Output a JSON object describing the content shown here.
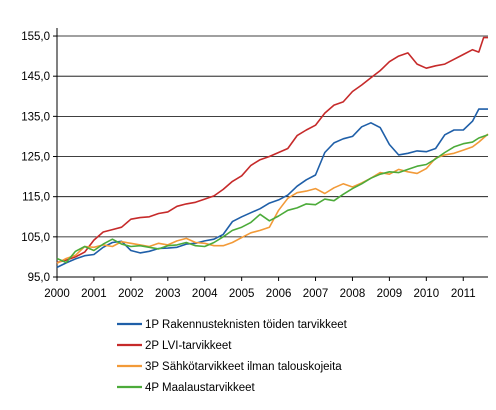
{
  "chart_data": {
    "type": "line",
    "title": "",
    "xlabel": "",
    "ylabel": "",
    "xlim": [
      2000.0,
      2011.67
    ],
    "ylim": [
      95,
      157
    ],
    "y_ticks": [
      95,
      105,
      115,
      125,
      135,
      145,
      155
    ],
    "y_tick_labels": [
      "95,0",
      "105,0",
      "115,0",
      "125,0",
      "135,0",
      "145,0",
      "155,0"
    ],
    "x_ticks": [
      2000,
      2001,
      2002,
      2003,
      2004,
      2005,
      2006,
      2007,
      2008,
      2009,
      2010,
      2011
    ],
    "x_tick_labels": [
      "2000",
      "2001",
      "2002",
      "2003",
      "2004",
      "2005",
      "2006",
      "2007",
      "2008",
      "2009",
      "2010",
      "2011"
    ],
    "grid": "horizontal",
    "legend_position": "bottom",
    "series": [
      {
        "name": "1P Rakennusteknisten  töiden tarvikkeet",
        "color": "#1f5fa8",
        "points": [
          [
            2000.0,
            97.4
          ],
          [
            2000.25,
            98.5
          ],
          [
            2000.5,
            99.5
          ],
          [
            2000.75,
            100.3
          ],
          [
            2001.0,
            100.6
          ],
          [
            2001.25,
            102.4
          ],
          [
            2001.5,
            103.6
          ],
          [
            2001.75,
            103.9
          ],
          [
            2002.0,
            101.6
          ],
          [
            2002.25,
            101.0
          ],
          [
            2002.5,
            101.4
          ],
          [
            2002.75,
            102.1
          ],
          [
            2003.0,
            102.2
          ],
          [
            2003.25,
            102.4
          ],
          [
            2003.5,
            103.2
          ],
          [
            2003.75,
            103.4
          ],
          [
            2004.0,
            104.0
          ],
          [
            2004.25,
            104.4
          ],
          [
            2004.5,
            105.6
          ],
          [
            2004.75,
            108.8
          ],
          [
            2005.0,
            110.0
          ],
          [
            2005.25,
            111.0
          ],
          [
            2005.5,
            112.0
          ],
          [
            2005.75,
            113.4
          ],
          [
            2006.0,
            114.2
          ],
          [
            2006.25,
            115.4
          ],
          [
            2006.5,
            117.6
          ],
          [
            2006.75,
            119.2
          ],
          [
            2007.0,
            120.4
          ],
          [
            2007.25,
            126.0
          ],
          [
            2007.5,
            128.4
          ],
          [
            2007.75,
            129.4
          ],
          [
            2008.0,
            130.0
          ],
          [
            2008.25,
            132.4
          ],
          [
            2008.5,
            133.4
          ],
          [
            2008.75,
            132.2
          ],
          [
            2009.0,
            128.0
          ],
          [
            2009.25,
            125.4
          ],
          [
            2009.5,
            125.8
          ],
          [
            2009.75,
            126.4
          ],
          [
            2010.0,
            126.2
          ],
          [
            2010.25,
            127.0
          ],
          [
            2010.5,
            130.4
          ],
          [
            2010.75,
            131.6
          ],
          [
            2011.0,
            131.6
          ],
          [
            2011.25,
            133.8
          ],
          [
            2011.42,
            136.8
          ],
          [
            2011.67,
            136.8
          ]
        ]
      },
      {
        "name": "2P LVI-tarvikkeet",
        "color": "#c62a2a",
        "points": [
          [
            2000.0,
            98.6
          ],
          [
            2000.25,
            99.2
          ],
          [
            2000.5,
            100.0
          ],
          [
            2000.75,
            101.2
          ],
          [
            2001.0,
            104.2
          ],
          [
            2001.25,
            106.2
          ],
          [
            2001.5,
            106.8
          ],
          [
            2001.75,
            107.4
          ],
          [
            2002.0,
            109.4
          ],
          [
            2002.25,
            109.8
          ],
          [
            2002.5,
            110.0
          ],
          [
            2002.75,
            110.8
          ],
          [
            2003.0,
            111.2
          ],
          [
            2003.25,
            112.6
          ],
          [
            2003.5,
            113.2
          ],
          [
            2003.75,
            113.6
          ],
          [
            2004.0,
            114.4
          ],
          [
            2004.25,
            115.2
          ],
          [
            2004.5,
            116.8
          ],
          [
            2004.75,
            118.8
          ],
          [
            2005.0,
            120.2
          ],
          [
            2005.25,
            122.8
          ],
          [
            2005.5,
            124.2
          ],
          [
            2005.75,
            125.0
          ],
          [
            2006.0,
            126.0
          ],
          [
            2006.25,
            127.0
          ],
          [
            2006.5,
            130.2
          ],
          [
            2006.75,
            131.6
          ],
          [
            2007.0,
            132.8
          ],
          [
            2007.25,
            135.8
          ],
          [
            2007.5,
            137.8
          ],
          [
            2007.75,
            138.6
          ],
          [
            2008.0,
            141.2
          ],
          [
            2008.25,
            142.8
          ],
          [
            2008.5,
            144.6
          ],
          [
            2008.75,
            146.4
          ],
          [
            2009.0,
            148.6
          ],
          [
            2009.25,
            150.0
          ],
          [
            2009.5,
            150.8
          ],
          [
            2009.75,
            148.0
          ],
          [
            2010.0,
            147.0
          ],
          [
            2010.25,
            147.6
          ],
          [
            2010.5,
            148.0
          ],
          [
            2010.75,
            149.2
          ],
          [
            2011.0,
            150.4
          ],
          [
            2011.25,
            151.6
          ],
          [
            2011.42,
            151.0
          ],
          [
            2011.55,
            154.6
          ],
          [
            2011.67,
            154.6
          ]
        ]
      },
      {
        "name": "3P Sähkötarvikkeet  ilman talouskojeita",
        "color": "#f29a38",
        "points": [
          [
            2000.0,
            98.4
          ],
          [
            2000.25,
            99.6
          ],
          [
            2000.5,
            100.4
          ],
          [
            2000.75,
            102.6
          ],
          [
            2001.0,
            102.4
          ],
          [
            2001.25,
            103.0
          ],
          [
            2001.5,
            102.6
          ],
          [
            2001.75,
            103.8
          ],
          [
            2002.0,
            103.4
          ],
          [
            2002.25,
            103.0
          ],
          [
            2002.5,
            102.6
          ],
          [
            2002.75,
            103.4
          ],
          [
            2003.0,
            103.0
          ],
          [
            2003.25,
            104.0
          ],
          [
            2003.5,
            104.6
          ],
          [
            2003.75,
            103.6
          ],
          [
            2004.0,
            103.4
          ],
          [
            2004.25,
            102.8
          ],
          [
            2004.5,
            102.8
          ],
          [
            2004.75,
            103.6
          ],
          [
            2005.0,
            104.8
          ],
          [
            2005.25,
            106.0
          ],
          [
            2005.5,
            106.6
          ],
          [
            2005.75,
            107.4
          ],
          [
            2006.0,
            111.6
          ],
          [
            2006.25,
            114.6
          ],
          [
            2006.5,
            116.0
          ],
          [
            2006.75,
            116.4
          ],
          [
            2007.0,
            117.0
          ],
          [
            2007.25,
            115.8
          ],
          [
            2007.5,
            117.2
          ],
          [
            2007.75,
            118.2
          ],
          [
            2008.0,
            117.4
          ],
          [
            2008.25,
            118.4
          ],
          [
            2008.5,
            119.6
          ],
          [
            2008.75,
            121.0
          ],
          [
            2009.0,
            120.6
          ],
          [
            2009.25,
            121.8
          ],
          [
            2009.5,
            121.2
          ],
          [
            2009.75,
            120.8
          ],
          [
            2010.0,
            122.0
          ],
          [
            2010.25,
            124.6
          ],
          [
            2010.5,
            125.4
          ],
          [
            2010.75,
            125.8
          ],
          [
            2011.0,
            126.6
          ],
          [
            2011.25,
            127.4
          ],
          [
            2011.42,
            128.6
          ],
          [
            2011.67,
            130.6
          ]
        ]
      },
      {
        "name": "4P Maalaustarvikkeet",
        "color": "#4cab3a",
        "points": [
          [
            2000.0,
            99.6
          ],
          [
            2000.25,
            98.6
          ],
          [
            2000.5,
            101.4
          ],
          [
            2000.75,
            102.6
          ],
          [
            2001.0,
            101.6
          ],
          [
            2001.25,
            103.2
          ],
          [
            2001.5,
            104.4
          ],
          [
            2001.75,
            103.2
          ],
          [
            2002.0,
            102.6
          ],
          [
            2002.25,
            102.8
          ],
          [
            2002.5,
            102.4
          ],
          [
            2002.75,
            102.0
          ],
          [
            2003.0,
            102.8
          ],
          [
            2003.25,
            103.0
          ],
          [
            2003.5,
            103.6
          ],
          [
            2003.75,
            102.8
          ],
          [
            2004.0,
            102.6
          ],
          [
            2004.25,
            103.6
          ],
          [
            2004.5,
            105.0
          ],
          [
            2004.75,
            106.6
          ],
          [
            2005.0,
            107.4
          ],
          [
            2005.25,
            108.6
          ],
          [
            2005.5,
            110.6
          ],
          [
            2005.75,
            109.0
          ],
          [
            2006.0,
            110.2
          ],
          [
            2006.25,
            111.6
          ],
          [
            2006.5,
            112.2
          ],
          [
            2006.75,
            113.2
          ],
          [
            2007.0,
            113.0
          ],
          [
            2007.25,
            114.4
          ],
          [
            2007.5,
            114.0
          ],
          [
            2007.75,
            115.6
          ],
          [
            2008.0,
            117.0
          ],
          [
            2008.25,
            118.2
          ],
          [
            2008.5,
            119.6
          ],
          [
            2008.75,
            120.6
          ],
          [
            2009.0,
            121.2
          ],
          [
            2009.25,
            121.0
          ],
          [
            2009.5,
            121.8
          ],
          [
            2009.75,
            122.6
          ],
          [
            2010.0,
            123.0
          ],
          [
            2010.25,
            124.4
          ],
          [
            2010.5,
            126.0
          ],
          [
            2010.75,
            127.4
          ],
          [
            2011.0,
            128.2
          ],
          [
            2011.25,
            128.6
          ],
          [
            2011.42,
            129.6
          ],
          [
            2011.67,
            130.4
          ]
        ]
      }
    ]
  }
}
